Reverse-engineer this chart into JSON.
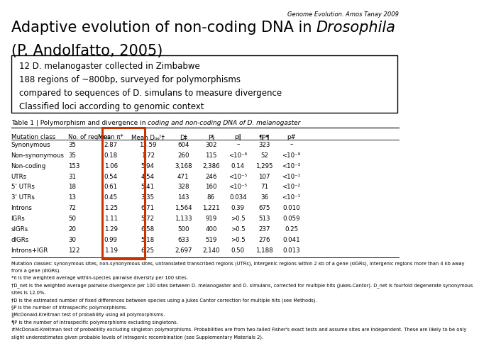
{
  "watermark": "Genome Evolution. Amos Tanay 2009",
  "title_normal": "Adaptive evolution of non-coding DNA in ",
  "title_italic": "Drosophila",
  "title_line2": "(P. Andolfatto, 2005)",
  "bullet_box_lines": [
    "12 D. melanogaster collected in Zimbabwe",
    "188 regions of ~800bp, surveyed for polymorphisms",
    "compared to sequences of D. simulans to measure divergence",
    "Classified loci according to genomic context"
  ],
  "table_title": "Table 1 | Polymorphism and divergence in coding and non-coding DNA of D. melanogaster",
  "col_headers": [
    "Mutation class",
    "No. of regions",
    "Mean π*",
    "Mean D_net†",
    "D‡",
    "P§",
    "p‖",
    "¶P¶",
    "p#"
  ],
  "rows": [
    [
      "Synonymous",
      "35",
      "2.87",
      "13.59",
      "604",
      "302",
      "–",
      "323",
      "–"
    ],
    [
      "Non-synonymous",
      "35",
      "0.18",
      "1.72",
      "260",
      "115",
      "<10⁻⁸",
      "52",
      "<10⁻⁹"
    ],
    [
      "Non-coding",
      "153",
      "1.06",
      "5.94",
      "3,168",
      "2,386",
      "0.14",
      "1,295",
      "<10⁻³"
    ],
    [
      "UTRs",
      "31",
      "0.54",
      "4.54",
      "471",
      "246",
      "<10⁻⁵",
      "107",
      "<10⁻¹"
    ],
    [
      "5' UTRs",
      "18",
      "0.61",
      "5.41",
      "328",
      "160",
      "<10⁻⁵",
      "71",
      "<10⁻²"
    ],
    [
      "3' UTRs",
      "13",
      "0.45",
      "3.35",
      "143",
      "86",
      "0.034",
      "36",
      "<10⁻¹"
    ],
    [
      "Introns",
      "72",
      "1.25",
      "6.71",
      "1,564",
      "1,221",
      "0.39",
      "675",
      "0.010"
    ],
    [
      "IGRs",
      "50",
      "1.11",
      "5.72",
      "1,133",
      "919",
      ">0.5",
      "513",
      "0.059"
    ],
    [
      "sIGRs",
      "20",
      "1.29",
      "6.58",
      "500",
      "400",
      ">0.5",
      "237",
      "0.25"
    ],
    [
      "dIGRs",
      "30",
      "0.99",
      "5.18",
      "633",
      "519",
      ">0.5",
      "276",
      "0.041"
    ],
    [
      "Introns+IGR",
      "122",
      "1.19",
      "6.25",
      "2,697",
      "2,140",
      "0.50",
      "1,188",
      "0.013"
    ]
  ],
  "footnotes": [
    "Mutation classes: synonymous sites, non-synonymous sites, untranslated transcribed regions (UTRs), Intergenic regions within 2 kb of a gene (sIGRs), Intergenic regions more than 4 kb away",
    "from a gene (dIGRs).",
    "*π is the weighted average within-species pairwise diversity per 100 sites.",
    "†D_net is the weighted average pairwise divergence per 100 sites between D. melanogaster and D. simulans, corrected for multiple hits (Jukes-Cantor). D_net is fourfold degenerate synonymous",
    "sites is 12.0%.",
    "‡D is the estimated number of fixed differences between species using a Jukes Cantor correction for multiple hits (see Methods).",
    "§P is the number of intraspecific polymorphisms.",
    "‖McDonald-Kreitman test of probability using all polymorphisms.",
    "¶P is the number of intraspecific polymorphisms excluding singletons.",
    "#McDonald-Kreitman test of probability excluding singleton polymorphisms. Probabilities are from two-tailed Fisher's exact tests and assume sites are independent. These are likely to be only",
    "slight underestimates given probable levels of intragenic recombination (see Supplementary Materials 2)."
  ],
  "bg_color": "#ffffff",
  "highlight_color": "#cc3300"
}
